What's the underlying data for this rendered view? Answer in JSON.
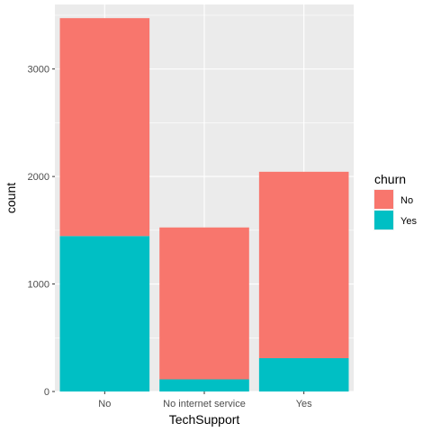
{
  "chart_data": {
    "type": "bar",
    "stacked": true,
    "title": "",
    "xlabel": "TechSupport",
    "ylabel": "count",
    "categories": [
      "No",
      "No internet service",
      "Yes"
    ],
    "series": [
      {
        "name": "No",
        "values": [
          2027,
          1413,
          1734
        ],
        "color": "#F8766D"
      },
      {
        "name": "Yes",
        "values": [
          1446,
          113,
          310
        ],
        "color": "#00BFC4"
      }
    ],
    "ylim": [
      0,
      3600
    ],
    "yticks": [
      0,
      1000,
      2000,
      3000
    ],
    "grid": true,
    "legend": {
      "title": "churn",
      "placement": "right"
    }
  }
}
